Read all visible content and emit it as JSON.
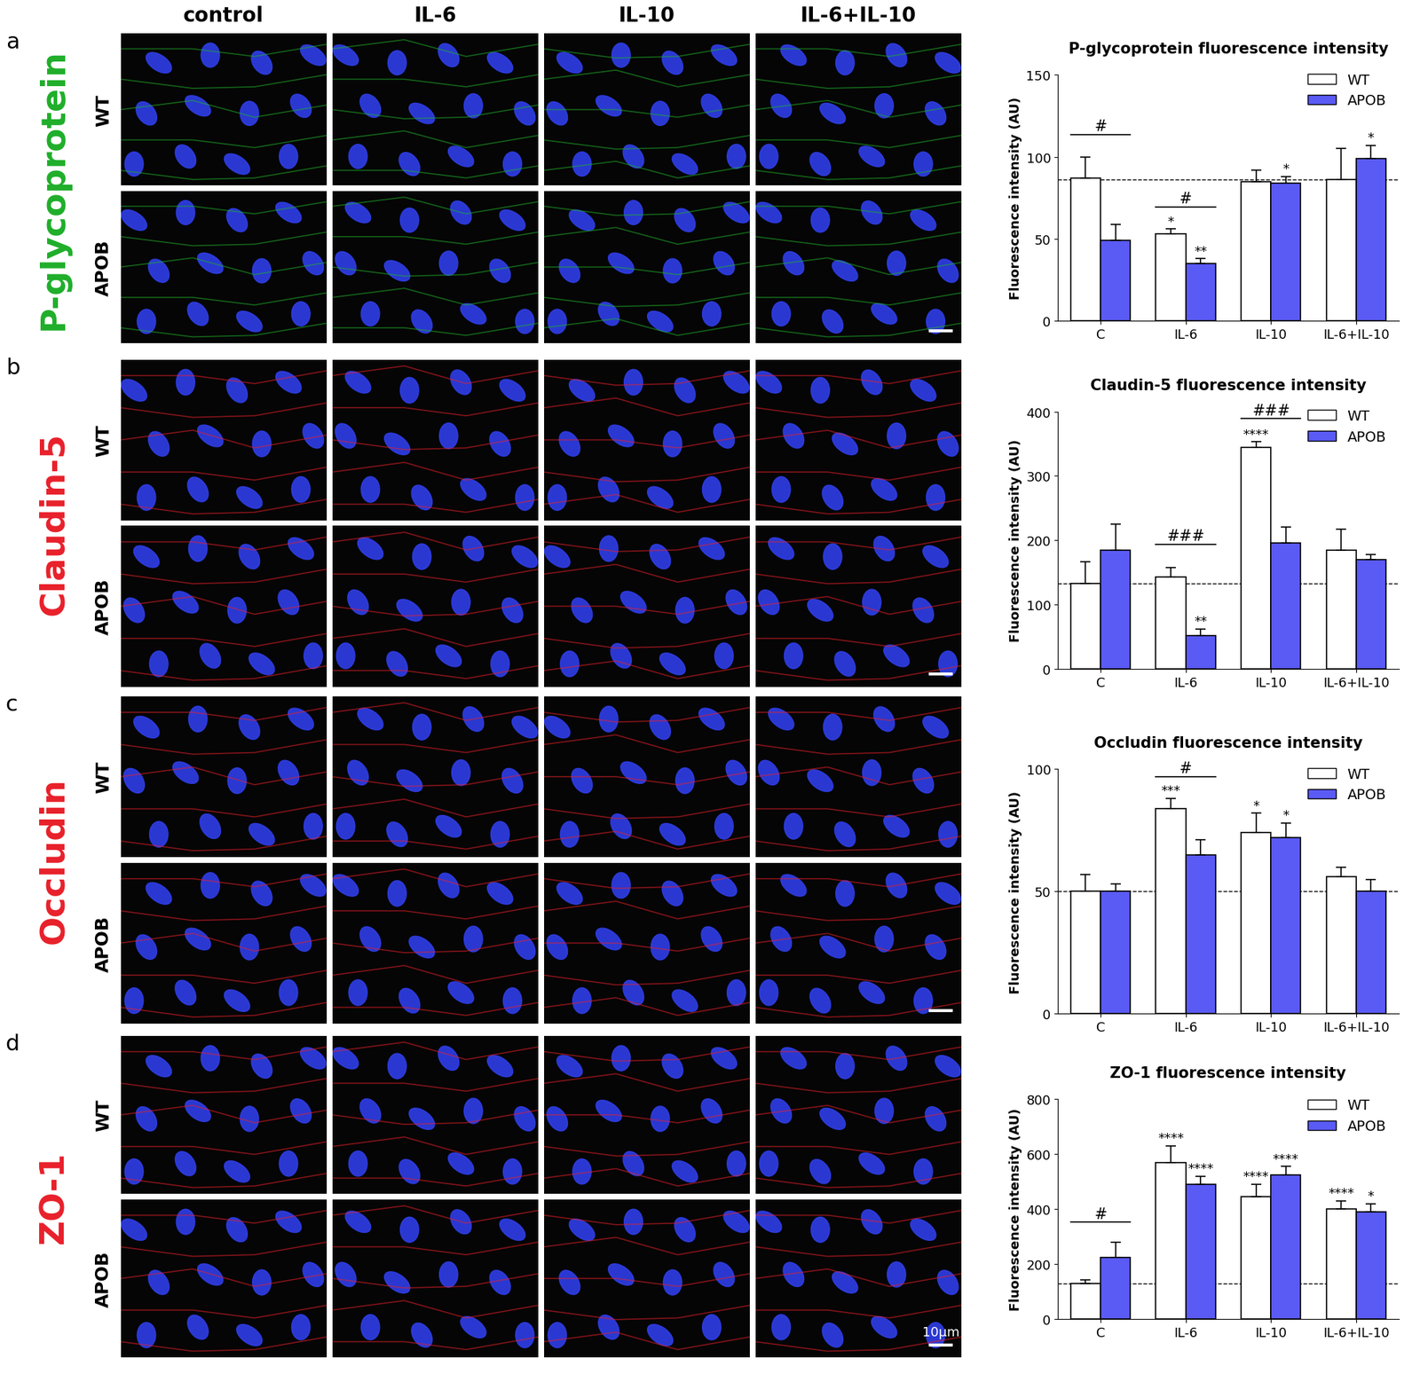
{
  "micrographs": {
    "columns": [
      "control",
      "IL-6",
      "IL-10",
      "IL-6+IL-10"
    ],
    "rows": [
      "WT",
      "APOB"
    ],
    "panels": [
      {
        "letter": "a",
        "marker": "P-glycoprotein",
        "color": "#1fae2a"
      },
      {
        "letter": "b",
        "marker": "Claudin-5",
        "color": "#e8202a"
      },
      {
        "letter": "c",
        "marker": "Occludin",
        "color": "#e8202a"
      },
      {
        "letter": "d",
        "marker": "ZO-1",
        "color": "#e8202a"
      }
    ],
    "scale_bar": "10μm"
  },
  "chart_data": [
    {
      "type": "bar",
      "title": "P-glycoprotein fluorescence intensity",
      "y_label": "Fluorescence intensity (AU)",
      "categories": [
        "C",
        "IL-6",
        "IL-10",
        "IL-6+IL-10"
      ],
      "ylim": [
        0,
        150
      ],
      "yticks": [
        0,
        50,
        100,
        150
      ],
      "legend": "upper right",
      "reference_line": 86,
      "series": [
        {
          "name": "WT",
          "color": "#ffffff",
          "values": [
            87,
            53,
            85,
            86
          ],
          "errors": [
            13,
            3,
            7,
            19
          ],
          "marks": [
            null,
            "*",
            null,
            null
          ]
        },
        {
          "name": "APOB",
          "color": "#5a5af5",
          "values": [
            49,
            35,
            84,
            99
          ],
          "errors": [
            10,
            3,
            4,
            8
          ],
          "marks": [
            null,
            "**",
            "*",
            "*"
          ]
        }
      ],
      "brackets": [
        {
          "category": "C",
          "label": "#"
        },
        {
          "category": "IL-6",
          "label": "#"
        }
      ]
    },
    {
      "type": "bar",
      "title": "Claudin-5 fluorescence intensity",
      "y_label": "Fluorescence intensity (AU)",
      "categories": [
        "C",
        "IL-6",
        "IL-10",
        "IL-6+IL-10"
      ],
      "ylim": [
        0,
        400
      ],
      "yticks": [
        0,
        100,
        200,
        300,
        400
      ],
      "legend": "upper right",
      "reference_line": 133,
      "series": [
        {
          "name": "WT",
          "color": "#ffffff",
          "values": [
            133,
            143,
            345,
            185
          ],
          "errors": [
            33,
            15,
            8,
            32
          ],
          "marks": [
            null,
            null,
            "****",
            null
          ]
        },
        {
          "name": "APOB",
          "color": "#5a5af5",
          "values": [
            185,
            52,
            196,
            170
          ],
          "errors": [
            40,
            10,
            25,
            8
          ],
          "marks": [
            null,
            "**",
            null,
            null
          ]
        }
      ],
      "brackets": [
        {
          "category": "IL-6",
          "label": "###"
        },
        {
          "category": "IL-10",
          "label": "###"
        }
      ]
    },
    {
      "type": "bar",
      "title": "Occludin fluorescence intensity",
      "y_label": "Fluorescence intensity (AU)",
      "categories": [
        "C",
        "IL-6",
        "IL-10",
        "IL-6+IL-10"
      ],
      "ylim": [
        0,
        100
      ],
      "yticks": [
        0,
        50,
        100
      ],
      "legend": "upper right",
      "reference_line": 50,
      "series": [
        {
          "name": "WT",
          "color": "#ffffff",
          "values": [
            50,
            84,
            74,
            56
          ],
          "errors": [
            7,
            4,
            8,
            4
          ],
          "marks": [
            null,
            "***",
            "*",
            null
          ]
        },
        {
          "name": "APOB",
          "color": "#5a5af5",
          "values": [
            50,
            65,
            72,
            50
          ],
          "errors": [
            3,
            6,
            6,
            5
          ],
          "marks": [
            null,
            null,
            "*",
            null
          ]
        }
      ],
      "brackets": [
        {
          "category": "IL-6",
          "label": "#"
        }
      ]
    },
    {
      "type": "bar",
      "title": "ZO-1 fluorescence intensity",
      "y_label": "Fluorescence intensity (AU)",
      "categories": [
        "C",
        "IL-6",
        "IL-10",
        "IL-6+IL-10"
      ],
      "ylim": [
        0,
        800
      ],
      "yticks": [
        0,
        200,
        400,
        600,
        800
      ],
      "legend": "upper right",
      "reference_line": 130,
      "series": [
        {
          "name": "WT",
          "color": "#ffffff",
          "values": [
            130,
            570,
            445,
            400
          ],
          "errors": [
            12,
            60,
            45,
            30
          ],
          "marks": [
            null,
            "****",
            "****",
            "****"
          ]
        },
        {
          "name": "APOB",
          "color": "#5a5af5",
          "values": [
            225,
            490,
            525,
            390
          ],
          "errors": [
            55,
            30,
            30,
            30
          ],
          "marks": [
            null,
            "****",
            "****",
            "*"
          ]
        }
      ],
      "brackets": [
        {
          "category": "C",
          "label": "#"
        }
      ]
    }
  ]
}
